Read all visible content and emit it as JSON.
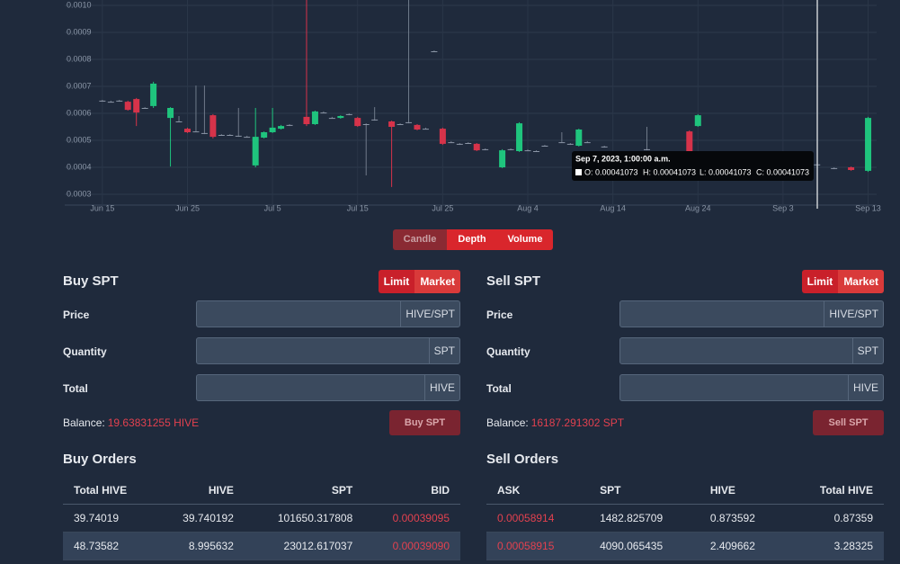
{
  "chart_data": {
    "type": "candlestick",
    "ylim": [
      0.00026,
      0.00102
    ],
    "yticks": [
      {
        "value": 0.001,
        "label": "0.0010"
      },
      0.0009,
      0.0008,
      0.0007,
      0.0006,
      0.0005,
      0.0004,
      0.0003
    ],
    "xlim": [
      "Jun 11",
      "Sep 14"
    ],
    "xticks": [
      "Jun 15",
      "Jun 25",
      "Jul 5",
      "Jul 15",
      "Jul 25",
      "Aug 4",
      "Aug 14",
      "Aug 24",
      "Sep 3",
      "Sep 13"
    ],
    "grid": true,
    "up_color": "#1fc47d",
    "down_color": "#d6334a",
    "x": [
      "Jun 15",
      "Jun 16",
      "Jun 17",
      "Jun 18",
      "Jun 19",
      "Jun 20",
      "Jun 21",
      "Jun 23",
      "Jun 24",
      "Jun 25",
      "Jun 26",
      "Jun 27",
      "Jun 28",
      "Jun 29",
      "Jun 30",
      "Jul 1",
      "Jul 2",
      "Jul 3",
      "Jul 4",
      "Jul 5",
      "Jul 6",
      "Jul 7",
      "Jul 9",
      "Jul 10",
      "Jul 11",
      "Jul 12",
      "Jul 13",
      "Jul 14",
      "Jul 15",
      "Jul 16",
      "Jul 17",
      "Jul 19",
      "Jul 20",
      "Jul 21",
      "Jul 22",
      "Jul 23",
      "Jul 24",
      "Jul 25",
      "Jul 26",
      "Jul 27",
      "Jul 28",
      "Jul 29",
      "Jul 30",
      "Aug 1",
      "Aug 2",
      "Aug 3",
      "Aug 4",
      "Aug 5",
      "Aug 6",
      "Aug 8",
      "Aug 9",
      "Aug 10",
      "Aug 11",
      "Aug 13",
      "Aug 18",
      "Aug 23",
      "Aug 24",
      "Sep 7",
      "Sep 9",
      "Sep 11",
      "Sep 13"
    ],
    "open": [
      0.000647,
      0.000643,
      0.000647,
      0.000643,
      0.000653,
      0.00062,
      0.000627,
      0.000583,
      0.00057,
      0.000543,
      0.000533,
      0.000527,
      0.000593,
      0.00052,
      0.00052,
      0.000517,
      0.000513,
      0.000407,
      0.00051,
      0.00053,
      0.000543,
      0.000557,
      0.000587,
      0.00056,
      0.000603,
      0.000583,
      0.000583,
      0.000597,
      0.000583,
      0.00056,
      0.000577,
      0.00057,
      0.00056,
      0.000567,
      0.000557,
      0.000543,
      0.00083,
      0.000543,
      0.000493,
      0.000487,
      0.00049,
      0.000487,
      0.000467,
      0.0004,
      0.000467,
      0.00046,
      0.000463,
      0.00046,
      0.00048,
      0.000493,
      0.000487,
      0.00048,
      0.000493,
      0.000477,
      0.000467,
      0.000533,
      0.000553,
      0.00041073,
      0.000397,
      0.0004,
      0.000387
    ],
    "high": [
      0.00065,
      0.000647,
      0.00065,
      0.000647,
      0.000657,
      0.000623,
      0.000717,
      0.000623,
      0.00059,
      0.000547,
      0.000703,
      0.000703,
      0.000597,
      0.000523,
      0.000523,
      0.00062,
      0.000517,
      0.00062,
      0.000533,
      0.00062,
      0.000557,
      0.00056,
      0.00102,
      0.00061,
      0.000607,
      0.000587,
      0.000593,
      0.0006,
      0.000587,
      0.000563,
      0.000623,
      0.000573,
      0.000563,
      0.00102,
      0.00056,
      0.000547,
      0.000833,
      0.000547,
      0.000497,
      0.00049,
      0.000493,
      0.00049,
      0.00047,
      0.000467,
      0.00047,
      0.000567,
      0.000467,
      0.000463,
      0.000483,
      0.00053,
      0.00049,
      0.000543,
      0.000497,
      0.00048,
      0.00055,
      0.000537,
      0.000597,
      0.00041073,
      0.0004,
      0.000403,
      0.000587
    ],
    "low": [
      0.000643,
      0.00064,
      0.000643,
      0.00061,
      0.000553,
      0.000617,
      0.00062,
      0.000403,
      0.000567,
      0.000527,
      0.00053,
      0.000523,
      0.000507,
      0.000517,
      0.000517,
      0.000513,
      0.00051,
      0.0004,
      0.000507,
      0.000527,
      0.00054,
      0.000553,
      0.000553,
      0.000557,
      0.0006,
      0.00058,
      0.00058,
      0.000593,
      0.00055,
      0.00037,
      0.000573,
      0.000327,
      0.000557,
      0.000563,
      0.000537,
      0.00054,
      0.000827,
      0.000483,
      0.00049,
      0.000483,
      0.000487,
      0.00046,
      0.000463,
      0.000397,
      0.000463,
      0.000457,
      0.00046,
      0.000457,
      0.000477,
      0.00049,
      0.000483,
      0.000477,
      0.00049,
      0.000473,
      0.000463,
      0.00045,
      0.00055,
      0.00041073,
      0.000393,
      0.000387,
      0.000383
    ],
    "close": [
      0.000647,
      0.000643,
      0.000647,
      0.000613,
      0.000603,
      0.00062,
      0.00071,
      0.00062,
      0.00057,
      0.00053,
      0.000533,
      0.000527,
      0.000513,
      0.00052,
      0.00052,
      0.000517,
      0.000513,
      0.000513,
      0.00053,
      0.000547,
      0.000553,
      0.000557,
      0.00056,
      0.000607,
      0.000603,
      0.000583,
      0.00059,
      0.000597,
      0.000553,
      0.00056,
      0.000577,
      0.00055,
      0.00056,
      0.000567,
      0.00054,
      0.000543,
      0.00083,
      0.000487,
      0.000493,
      0.000487,
      0.00049,
      0.000463,
      0.000467,
      0.000463,
      0.000467,
      0.000563,
      0.000463,
      0.00046,
      0.00048,
      0.000493,
      0.000487,
      0.00054,
      0.000493,
      0.000477,
      0.000467,
      0.000453,
      0.000593,
      0.00041073,
      0.000397,
      0.00039,
      0.000583
    ],
    "tooltip": {
      "title": "Sep 7, 2023, 1:00:00 a.m.",
      "items": [
        "O: 0.00041073",
        "H: 0.00041073",
        "L: 0.00041073",
        "C: 0.00041073"
      ]
    }
  },
  "toggle": [
    "Candle",
    "Depth",
    "Volume"
  ],
  "buy": {
    "title": "Buy SPT",
    "modes": [
      "Limit",
      "Market"
    ],
    "fields": [
      {
        "label": "Price",
        "unit": "HIVE/SPT"
      },
      {
        "label": "Quantity",
        "unit": "SPT"
      },
      {
        "label": "Total",
        "unit": "HIVE"
      }
    ],
    "balance_label": "Balance:",
    "balance": "19.63831255 HIVE",
    "button": "Buy SPT",
    "orders_title": "Buy Orders",
    "headers": [
      "Total HIVE",
      "HIVE",
      "SPT",
      "BID"
    ],
    "rows": [
      [
        "39.74019",
        "39.740192",
        "101650.317808",
        "0.00039095"
      ],
      [
        "48.73582",
        "8.995632",
        "23012.617037",
        "0.00039090"
      ]
    ]
  },
  "sell": {
    "title": "Sell SPT",
    "modes": [
      "Limit",
      "Market"
    ],
    "fields": [
      {
        "label": "Price",
        "unit": "HIVE/SPT"
      },
      {
        "label": "Quantity",
        "unit": "SPT"
      },
      {
        "label": "Total",
        "unit": "HIVE"
      }
    ],
    "balance_label": "Balance:",
    "balance": "16187.291302 SPT",
    "button": "Sell SPT",
    "orders_title": "Sell Orders",
    "headers": [
      "ASK",
      "SPT",
      "HIVE",
      "Total HIVE"
    ],
    "rows": [
      [
        "0.00058914",
        "1482.825709",
        "0.873592",
        "0.87359"
      ],
      [
        "0.00058915",
        "4090.065435",
        "2.409662",
        "3.28325"
      ]
    ]
  }
}
